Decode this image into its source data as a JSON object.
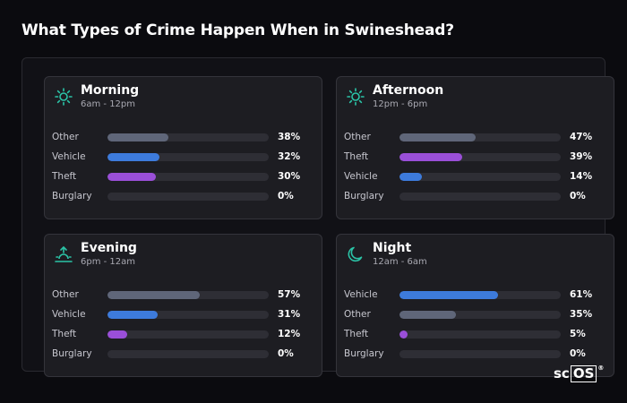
{
  "title": "What Types of Crime Happen When in Swineshead?",
  "colors": {
    "Other": "#5f6679",
    "Vehicle": "#3d7bdc",
    "Theft": "#9a4fd8",
    "Burglary": "#6a6a74",
    "icon": "#2bc4a7"
  },
  "periods": [
    {
      "name": "Morning",
      "hours": "6am - 12pm",
      "icon": "sun-icon",
      "rows": [
        {
          "label": "Other",
          "pct": "38%",
          "value": 38
        },
        {
          "label": "Vehicle",
          "pct": "32%",
          "value": 32
        },
        {
          "label": "Theft",
          "pct": "30%",
          "value": 30
        },
        {
          "label": "Burglary",
          "pct": "0%",
          "value": 0
        }
      ]
    },
    {
      "name": "Afternoon",
      "hours": "12pm - 6pm",
      "icon": "sun-icon",
      "rows": [
        {
          "label": "Other",
          "pct": "47%",
          "value": 47
        },
        {
          "label": "Theft",
          "pct": "39%",
          "value": 39
        },
        {
          "label": "Vehicle",
          "pct": "14%",
          "value": 14
        },
        {
          "label": "Burglary",
          "pct": "0%",
          "value": 0
        }
      ]
    },
    {
      "name": "Evening",
      "hours": "6pm - 12am",
      "icon": "sunset-icon",
      "rows": [
        {
          "label": "Other",
          "pct": "57%",
          "value": 57
        },
        {
          "label": "Vehicle",
          "pct": "31%",
          "value": 31
        },
        {
          "label": "Theft",
          "pct": "12%",
          "value": 12
        },
        {
          "label": "Burglary",
          "pct": "0%",
          "value": 0
        }
      ]
    },
    {
      "name": "Night",
      "hours": "12am - 6am",
      "icon": "moon-icon",
      "rows": [
        {
          "label": "Vehicle",
          "pct": "61%",
          "value": 61
        },
        {
          "label": "Other",
          "pct": "35%",
          "value": 35
        },
        {
          "label": "Theft",
          "pct": "5%",
          "value": 5
        },
        {
          "label": "Burglary",
          "pct": "0%",
          "value": 0
        }
      ]
    }
  ],
  "brand": {
    "prefix": "sc",
    "boxed": "OS",
    "mark": "®"
  }
}
